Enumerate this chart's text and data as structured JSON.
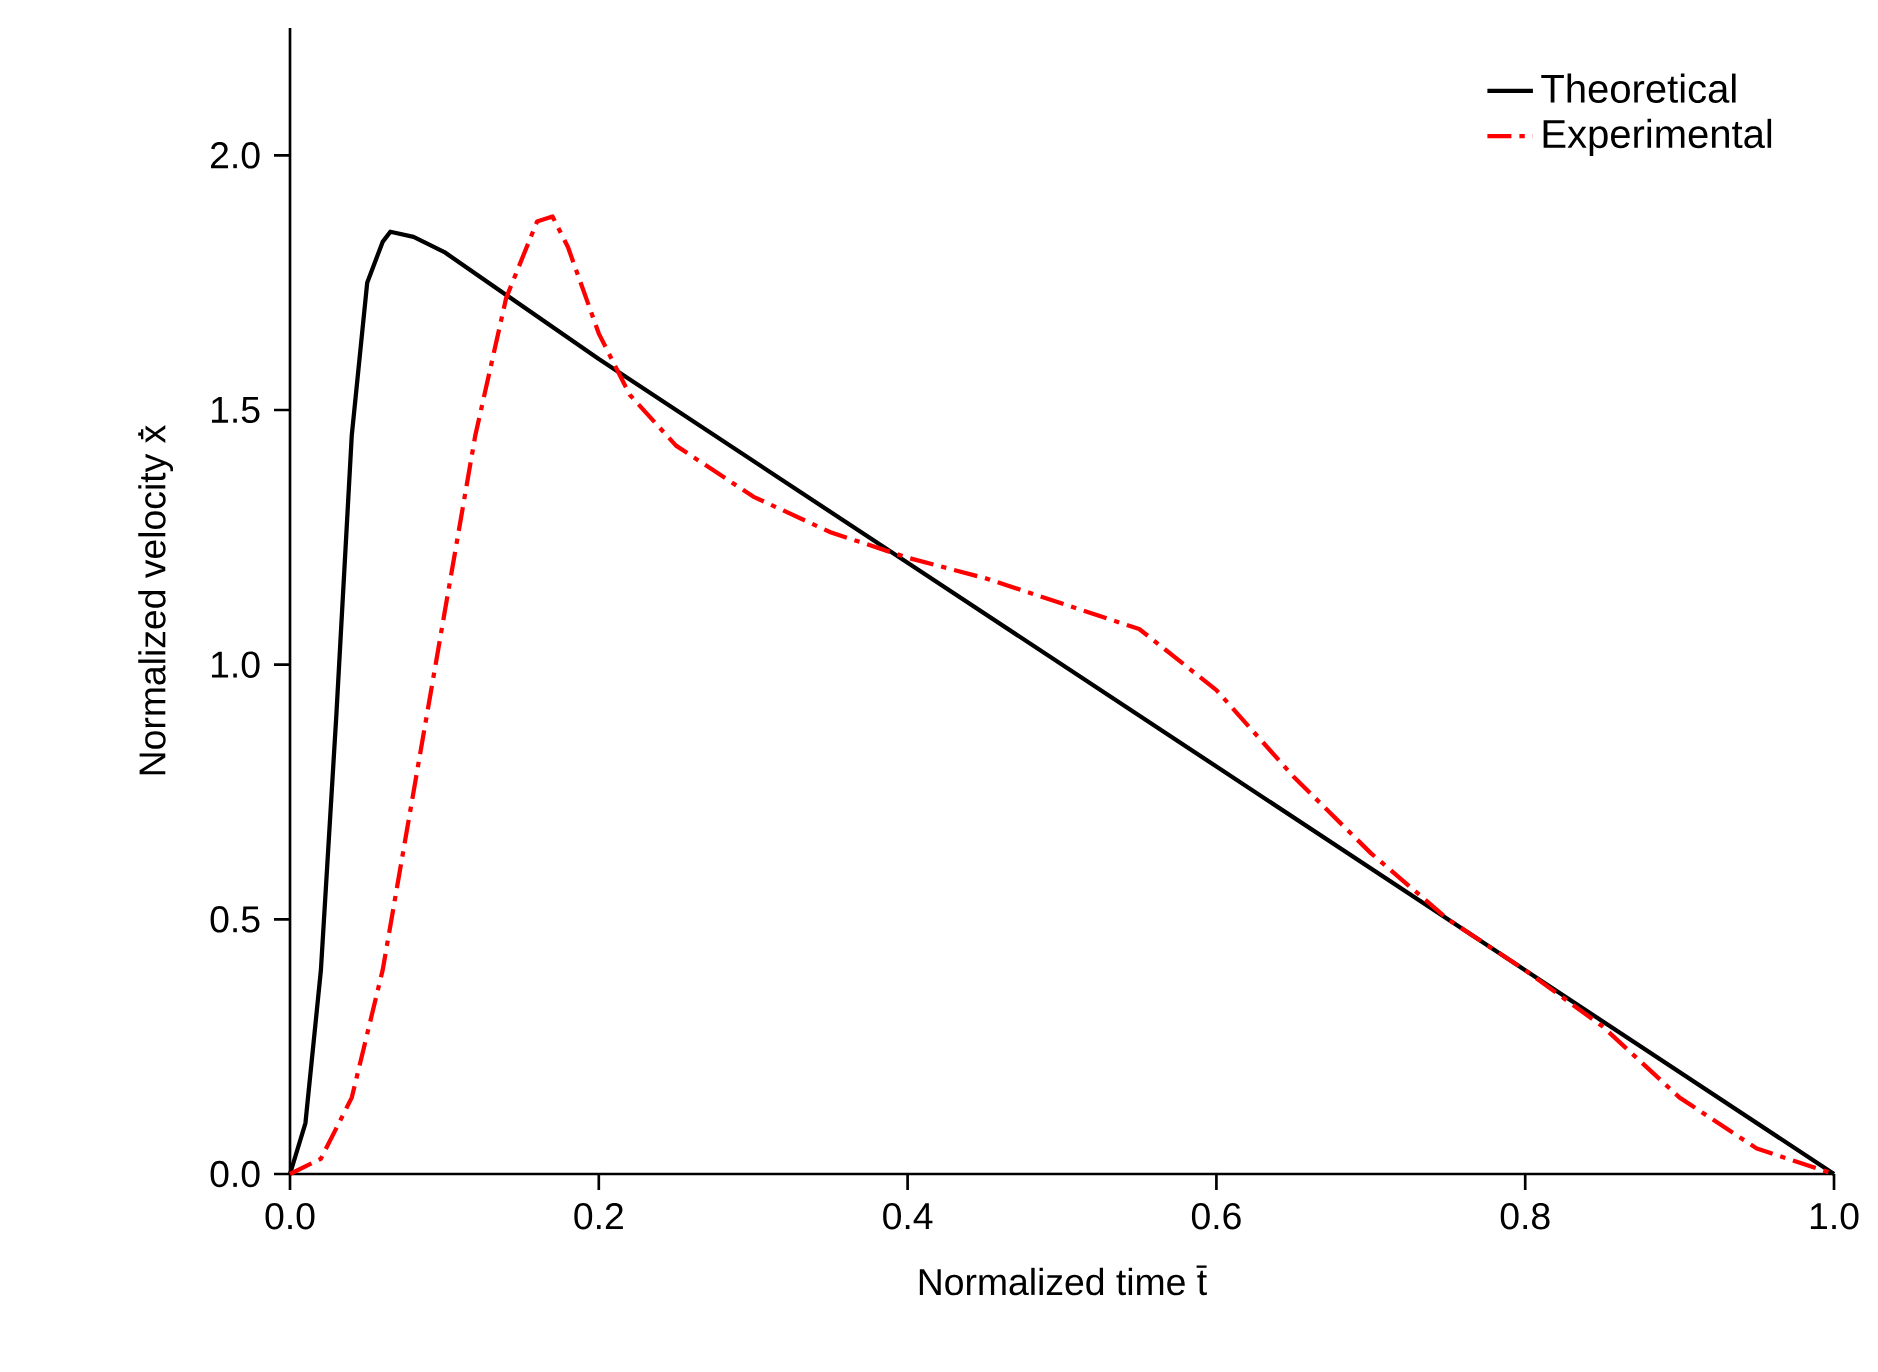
{
  "chart_data": {
    "type": "line",
    "xlabel": "Normalized time  t̄",
    "ylabel": "Normalized velocity  ẋ̄",
    "xlim": [
      0,
      1.0
    ],
    "ylim": [
      0,
      2.25
    ],
    "xticks": [
      {
        "value": 0,
        "label": "0.0"
      },
      {
        "value": 0.2,
        "label": "0.2"
      },
      {
        "value": 0.4,
        "label": "0.4"
      },
      {
        "value": 0.6,
        "label": "0.6"
      },
      {
        "value": 0.8,
        "label": "0.8"
      },
      {
        "value": 1.0,
        "label": "1.0"
      }
    ],
    "yticks": [
      {
        "value": 0,
        "label": "0.0"
      },
      {
        "value": 0.5,
        "label": "0.5"
      },
      {
        "value": 1.0,
        "label": "1.0"
      },
      {
        "value": 1.5,
        "label": "1.5"
      },
      {
        "value": 2.0,
        "label": "2.0"
      }
    ],
    "legend": "top right",
    "grid": false,
    "series": [
      {
        "name": "Theoretical",
        "color": "#000000",
        "line_style": "solid",
        "x": [
          0,
          0.01,
          0.02,
          0.03,
          0.04,
          0.05,
          0.06,
          0.065,
          0.08,
          0.1,
          0.2,
          0.4,
          0.6,
          0.8,
          1.0
        ],
        "values": [
          0,
          0.1,
          0.4,
          0.9,
          1.45,
          1.75,
          1.83,
          1.85,
          1.84,
          1.81,
          1.6,
          1.2,
          0.8,
          0.4,
          0
        ]
      },
      {
        "name": "Experimental",
        "color": "#ff0000",
        "line_style": "dashdot",
        "x": [
          0,
          0.02,
          0.04,
          0.06,
          0.08,
          0.1,
          0.12,
          0.14,
          0.16,
          0.17,
          0.18,
          0.2,
          0.22,
          0.25,
          0.3,
          0.35,
          0.4,
          0.45,
          0.5,
          0.55,
          0.6,
          0.65,
          0.7,
          0.75,
          0.8,
          0.85,
          0.9,
          0.95,
          1.0
        ],
        "values": [
          0,
          0.03,
          0.15,
          0.4,
          0.75,
          1.1,
          1.45,
          1.72,
          1.87,
          1.88,
          1.82,
          1.65,
          1.53,
          1.43,
          1.33,
          1.26,
          1.21,
          1.17,
          1.12,
          1.07,
          0.95,
          0.78,
          0.63,
          0.5,
          0.4,
          0.29,
          0.15,
          0.05,
          0
        ]
      }
    ]
  }
}
